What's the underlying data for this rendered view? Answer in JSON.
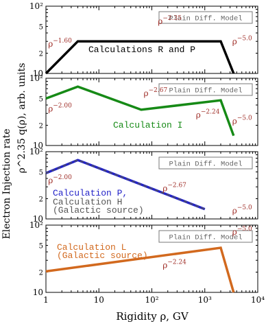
{
  "figure": {
    "ylabel": "Electron Injection rate",
    "ylabel_math": "ρ^2.35 q(ρ),   arb. units",
    "xlabel": "Rigidity ρ,   GV"
  },
  "chart_data": [
    {
      "type": "line",
      "legend_box": "Plain Diff. Model",
      "series": [
        {
          "name": "Calculations R and P",
          "color": "#000000",
          "dashed": false,
          "x": [
            1,
            4,
            2000,
            3500
          ],
          "y": [
            10,
            30,
            30,
            10
          ]
        }
      ],
      "slope_labels": [
        {
          "text": "ρ",
          "exp": "−1.60",
          "x": 1.1,
          "y": 25
        },
        {
          "text": "ρ",
          "exp": "−2.35",
          "x": 130,
          "y": 54
        },
        {
          "text": "ρ",
          "exp": "−5.0",
          "x": 3300,
          "y": 27
        }
      ],
      "yticks": [
        "10",
        "2",
        "5",
        "10²"
      ],
      "ylim": [
        10,
        100
      ],
      "yscale": "log"
    },
    {
      "type": "line",
      "legend_box": "Plain Diff. Model",
      "series": [
        {
          "name": "Calculation I",
          "color": "#168a16",
          "dashed": false,
          "x": [
            1,
            4,
            63,
            2000,
            3500
          ],
          "y": [
            50,
            75,
            34,
            47,
            14
          ]
        }
      ],
      "slope_labels": [
        {
          "text": "ρ",
          "exp": "−2.00",
          "x": 1.1,
          "y": 32
        },
        {
          "text": "ρ",
          "exp": "−2.67",
          "x": 70,
          "y": 54
        },
        {
          "text": "ρ",
          "exp": "−2.24",
          "x": 680,
          "y": 26
        },
        {
          "text": "ρ",
          "exp": "−5.0",
          "x": 3300,
          "y": 21
        }
      ],
      "yticks": [
        "10",
        "2",
        "5",
        "10²"
      ],
      "ylim": [
        10,
        100
      ],
      "yscale": "log"
    },
    {
      "type": "line",
      "legend_box": "Plain Diff. Model",
      "series": [
        {
          "name": "Calculation P,",
          "color": "#2323c8",
          "dashed": false,
          "x": [
            1,
            4,
            1000
          ],
          "y": [
            48,
            75,
            14
          ]
        },
        {
          "name": "Calculation H",
          "color": "#555555",
          "dashed": true,
          "x": [
            1,
            4,
            1000
          ],
          "y": [
            48,
            75,
            14
          ]
        }
      ],
      "legend_note": "(Galactic source)",
      "slope_labels": [
        {
          "text": "ρ",
          "exp": "−2.00",
          "x": 1.1,
          "y": 34
        },
        {
          "text": "ρ",
          "exp": "−2.67",
          "x": 160,
          "y": 26
        },
        {
          "text": "ρ",
          "exp": "−5.0",
          "x": 3300,
          "y": 12
        }
      ],
      "yticks": [
        "10",
        "2",
        "5",
        "10²"
      ],
      "ylim": [
        10,
        100
      ],
      "yscale": "log"
    },
    {
      "type": "line",
      "legend_box": "Plain Diff. Model",
      "series": [
        {
          "name": "Calculation L",
          "color": "#d2691e",
          "dashed": false,
          "x": [
            1,
            2000,
            3500
          ],
          "y": [
            20.5,
            46,
            10
          ]
        }
      ],
      "legend_note": "(Galactic source)",
      "slope_labels": [
        {
          "text": "ρ",
          "exp": "−2.24",
          "x": 160,
          "y": 23
        },
        {
          "text": "ρ",
          "exp": "−5.0",
          "x": 3300,
          "y": 72
        }
      ],
      "yticks": [
        "10",
        "2",
        "5",
        "10²"
      ],
      "ylim": [
        10,
        100
      ],
      "yscale": "log",
      "xticks": [
        "1",
        "10",
        "10²",
        "10³",
        "10⁴"
      ],
      "xlim": [
        1,
        10000
      ],
      "xscale": "log"
    }
  ]
}
